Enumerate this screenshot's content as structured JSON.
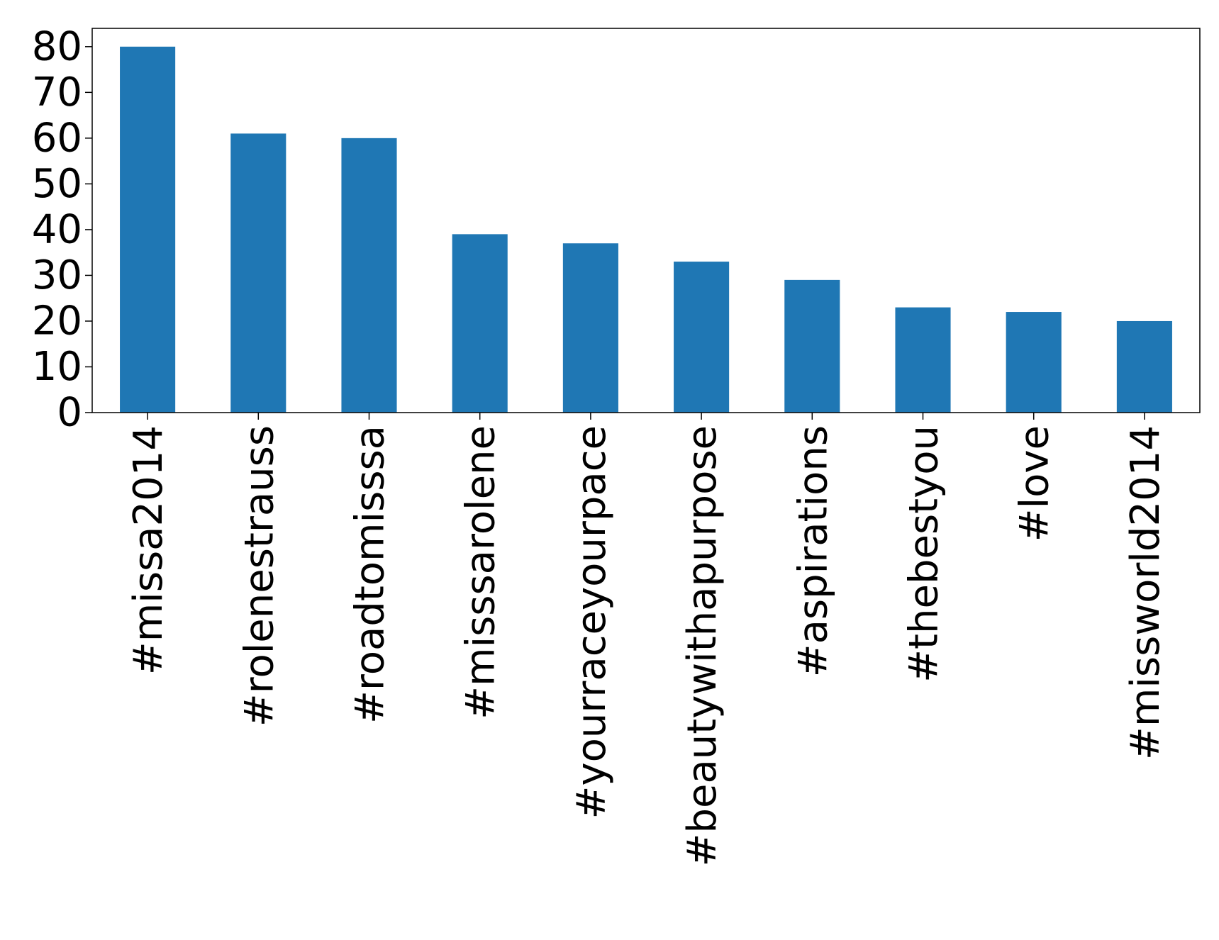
{
  "chart_data": {
    "type": "bar",
    "title": "",
    "xlabel": "",
    "ylabel": "",
    "categories": [
      "#missa2014",
      "#rolenestrauss",
      "#roadtomisssa",
      "#misssarolene",
      "#yourraceyourpace",
      "#beautywithapurpose",
      "#aspirations",
      "#thebestyou",
      "#love",
      "#missworld2014"
    ],
    "values": [
      80,
      61,
      60,
      39,
      37,
      33,
      29,
      23,
      22,
      20
    ],
    "ylim": [
      0,
      84
    ],
    "yticks": [
      0,
      10,
      20,
      30,
      40,
      50,
      60,
      70,
      80
    ],
    "bar_color": "#1f77b4",
    "grid": false,
    "legend": "none"
  }
}
